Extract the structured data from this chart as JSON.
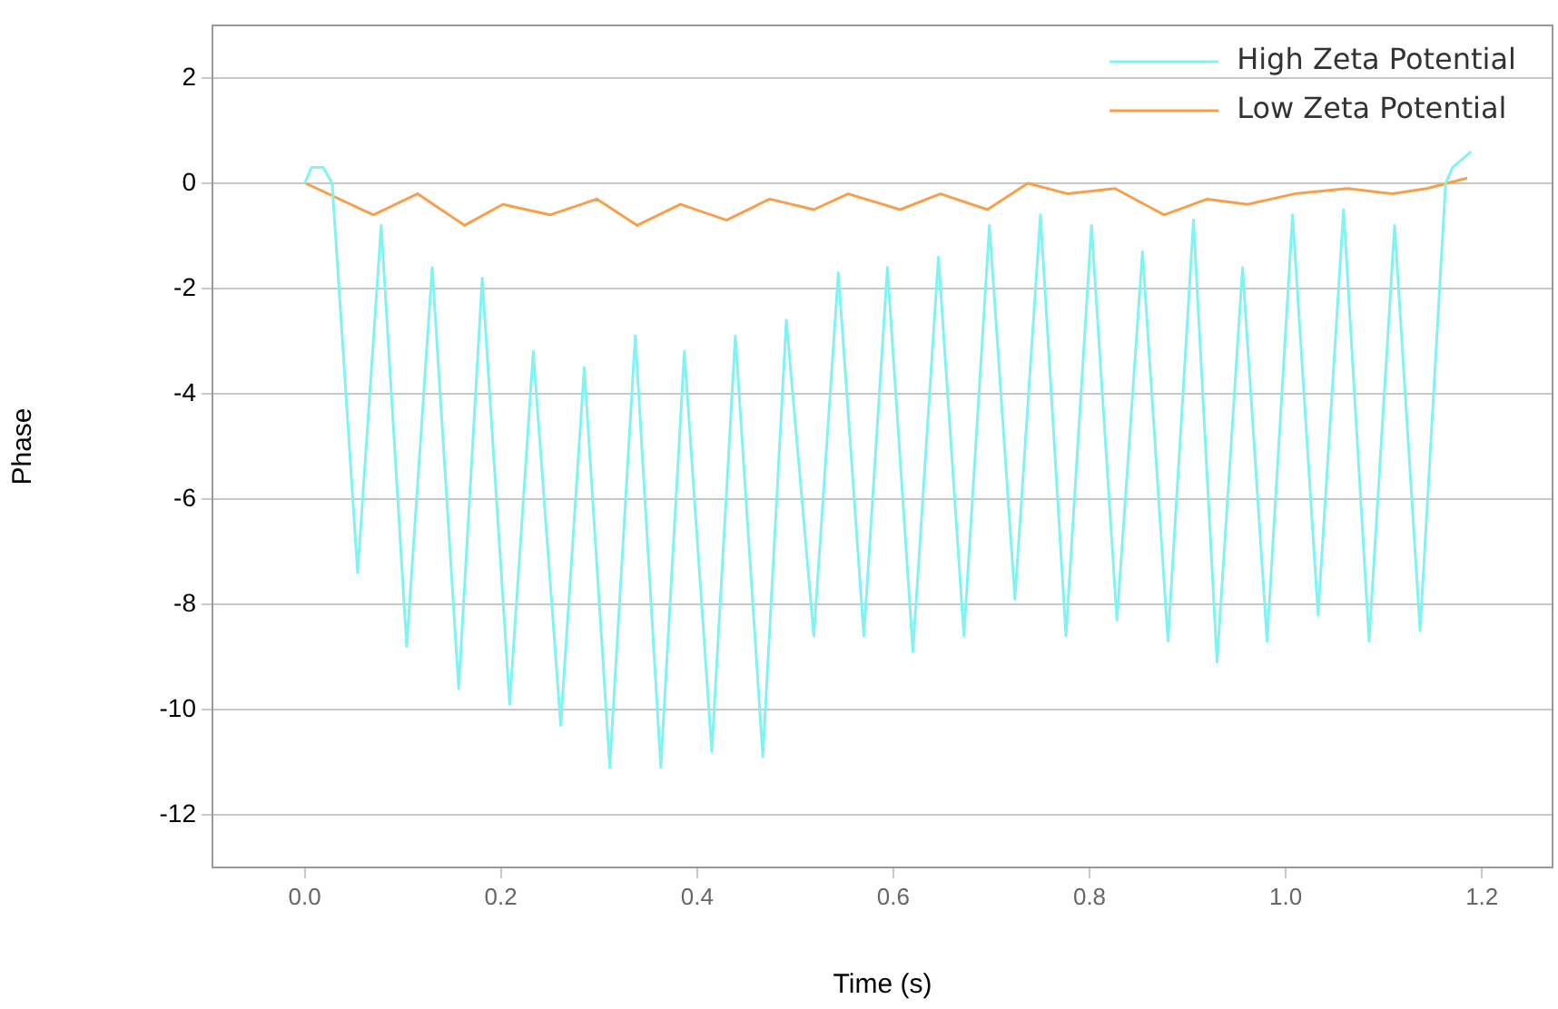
{
  "chart_data": {
    "type": "line",
    "xlabel": "Time (s)",
    "ylabel": "Phase",
    "xlim": [
      -0.094,
      1.272
    ],
    "ylim": [
      -13,
      3
    ],
    "xticks": [
      {
        "value": 0,
        "label": "0.0"
      },
      {
        "value": 0.2,
        "label": "0.2"
      },
      {
        "value": 0.4,
        "label": "0.4"
      },
      {
        "value": 0.6,
        "label": "0.6"
      },
      {
        "value": 0.8,
        "label": "0.8"
      },
      {
        "value": 1,
        "label": "1.0"
      },
      {
        "value": 1.2,
        "label": "1.2"
      }
    ],
    "yticks": [
      -12,
      -10,
      -8,
      -6,
      -4,
      -2,
      0,
      2
    ],
    "grid": "y",
    "legend": "top right",
    "marker": "none",
    "line_style": "solid",
    "series": [
      {
        "name": "High Zeta Potential",
        "color": "#80f3f3",
        "x": [
          0,
          0.007,
          0.019,
          0.028,
          0.054,
          0.078,
          0.104,
          0.13,
          0.157,
          0.181,
          0.209,
          0.233,
          0.261,
          0.285,
          0.311,
          0.337,
          0.363,
          0.387,
          0.415,
          0.439,
          0.467,
          0.491,
          0.519,
          0.544,
          0.57,
          0.594,
          0.62,
          0.646,
          0.672,
          0.698,
          0.724,
          0.75,
          0.776,
          0.802,
          0.828,
          0.854,
          0.88,
          0.906,
          0.93,
          0.956,
          0.981,
          1.007,
          1.033,
          1.059,
          1.085,
          1.111,
          1.137,
          1.163,
          1.17,
          1.189
        ],
        "values": [
          0,
          0.3,
          0.3,
          0,
          -7.4,
          -0.8,
          -8.8,
          -1.6,
          -9.6,
          -1.8,
          -9.9,
          -3.2,
          -10.3,
          -3.5,
          -11.1,
          -2.9,
          -11.1,
          -3.2,
          -10.8,
          -2.9,
          -10.9,
          -2.6,
          -8.6,
          -1.7,
          -8.6,
          -1.6,
          -8.9,
          -1.4,
          -8.6,
          -0.8,
          -7.9,
          -0.6,
          -8.6,
          -0.8,
          -8.3,
          -1.3,
          -8.7,
          -0.7,
          -9.1,
          -1.6,
          -8.7,
          -0.6,
          -8.2,
          -0.5,
          -8.7,
          -0.8,
          -8.5,
          0,
          0.3,
          0.6
        ]
      },
      {
        "name": "Low Zeta Potential",
        "color": "#f7a04b",
        "x": [
          0.001,
          0.07,
          0.115,
          0.163,
          0.202,
          0.25,
          0.298,
          0.339,
          0.383,
          0.43,
          0.474,
          0.519,
          0.554,
          0.607,
          0.648,
          0.696,
          0.737,
          0.778,
          0.826,
          0.876,
          0.92,
          0.961,
          1.009,
          1.063,
          1.109,
          1.144,
          1.185
        ],
        "values": [
          0,
          -0.6,
          -0.2,
          -0.8,
          -0.4,
          -0.6,
          -0.3,
          -0.8,
          -0.4,
          -0.7,
          -0.3,
          -0.5,
          -0.2,
          -0.5,
          -0.2,
          -0.5,
          0,
          -0.2,
          -0.1,
          -0.6,
          -0.3,
          -0.4,
          -0.2,
          -0.1,
          -0.2,
          -0.1,
          0.1
        ]
      }
    ]
  }
}
